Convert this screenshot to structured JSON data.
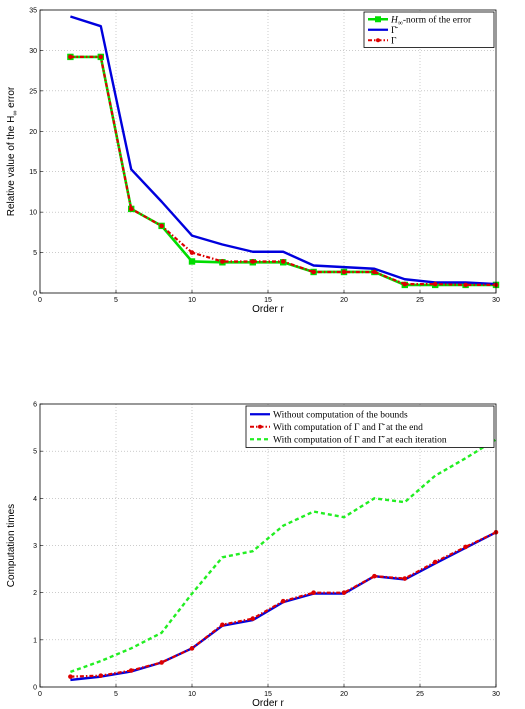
{
  "chart_data": [
    {
      "type": "line",
      "xlabel": "Order r",
      "ylabel": "Relative value of the H",
      "ylabel_sub": "∞",
      "ylabel_tail": " error",
      "xlim": [
        0,
        30
      ],
      "ylim": [
        0,
        35
      ],
      "xticks": [
        0,
        5,
        10,
        15,
        20,
        25,
        30
      ],
      "yticks": [
        0,
        5,
        10,
        15,
        20,
        25,
        30,
        35
      ],
      "grid": true,
      "legend_position": "top-right",
      "x": [
        2,
        4,
        6,
        8,
        10,
        12,
        14,
        16,
        18,
        20,
        22,
        24,
        26,
        28,
        30
      ],
      "series": [
        {
          "name": "H∞-norm of the error",
          "legend_prefix": "H",
          "legend_sub": "∞",
          "legend_suffix": "-norm of the error",
          "color": "#00dd00",
          "style": "solid-square",
          "values": [
            29.2,
            29.2,
            10.4,
            8.3,
            3.9,
            3.8,
            3.8,
            3.8,
            2.6,
            2.6,
            2.6,
            1.0,
            1.0,
            1.0,
            1.0
          ]
        },
        {
          "name": "Γ̄",
          "legend_label": "Γ̄",
          "color": "#0000dd",
          "style": "solid",
          "values": [
            34.2,
            33.0,
            15.3,
            11.3,
            7.1,
            6.0,
            5.1,
            5.1,
            3.4,
            3.2,
            3.0,
            1.7,
            1.3,
            1.3,
            1.1
          ]
        },
        {
          "name": "Γ",
          "legend_label": "Γ",
          "color": "#dd0000",
          "style": "dashdot-dot",
          "values": [
            29.2,
            29.2,
            10.4,
            8.3,
            5.0,
            3.9,
            3.9,
            3.9,
            2.6,
            2.6,
            2.6,
            1.1,
            1.1,
            1.0,
            1.0
          ]
        }
      ]
    },
    {
      "type": "line",
      "xlabel": "Order r",
      "ylabel": "Computation times",
      "xlim": [
        0,
        30
      ],
      "ylim": [
        0,
        6
      ],
      "xticks": [
        0,
        5,
        10,
        15,
        20,
        25,
        30
      ],
      "yticks": [
        0,
        1,
        2,
        3,
        4,
        5,
        6
      ],
      "grid": true,
      "legend_position": "top-right",
      "x": [
        2,
        4,
        6,
        8,
        10,
        12,
        14,
        16,
        18,
        20,
        22,
        24,
        26,
        28,
        30
      ],
      "series": [
        {
          "name": "Without computation of the bounds",
          "legend_label": "Without computation of the bounds",
          "color": "#0000dd",
          "style": "solid",
          "values": [
            0.15,
            0.22,
            0.33,
            0.52,
            0.82,
            1.3,
            1.42,
            1.8,
            1.98,
            1.98,
            2.35,
            2.28,
            2.62,
            2.95,
            3.28
          ]
        },
        {
          "name": "With computation of Γ and Γ̄ at the end",
          "legend_label": "With computation of Γ and Γ̄ at the end",
          "color": "#dd0000",
          "style": "dashdot-dot",
          "values": [
            0.22,
            0.24,
            0.35,
            0.52,
            0.82,
            1.32,
            1.45,
            1.82,
            2.0,
            2.0,
            2.35,
            2.3,
            2.65,
            2.97,
            3.28
          ]
        },
        {
          "name": "With computation of Γ and Γ̄ at each iteration",
          "legend_label": "With computation of Γ and Γ̄ at each iteration",
          "color": "#22ee22",
          "style": "dashed",
          "values": [
            0.32,
            0.55,
            0.82,
            1.15,
            1.98,
            2.75,
            2.88,
            3.42,
            3.72,
            3.6,
            4.0,
            3.92,
            4.48,
            4.85,
            5.25
          ]
        }
      ]
    }
  ]
}
